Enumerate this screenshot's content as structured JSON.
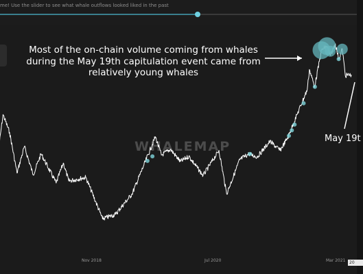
{
  "header": {
    "hint_text": "me! Use the slider to see what whale outflows looked liked in the past",
    "slider_value_fraction": 0.55
  },
  "watermark": "WHALEMAP",
  "annotation": {
    "lines": [
      "Most of the on-chain volume coming from whales",
      "during the May 19th capitulation event came from",
      "relatively young whales"
    ],
    "may_label": "May 19t"
  },
  "colors": {
    "background": "#1b1b1b",
    "price_line": "#ffffff",
    "bubble": "#7fd6dc",
    "bubble_large": "#66b7bd"
  },
  "chart_data": {
    "type": "line",
    "title": "",
    "xlabel": "",
    "ylabel": "",
    "x_tick_labels": [
      "Nov 2018",
      "Jul 2020",
      "Mar 2021",
      "20"
    ],
    "x_range": [
      "2017-12-01",
      "2021-06-30"
    ],
    "y_scale": "log",
    "y_range": [
      3000,
      65000
    ],
    "series": [
      {
        "values": [
          {
            "x": "2017-12-01",
            "y": 10500
          },
          {
            "x": "2017-12-17",
            "y": 19000
          },
          {
            "x": "2018-01-10",
            "y": 14000
          },
          {
            "x": "2018-02-06",
            "y": 7000
          },
          {
            "x": "2018-03-05",
            "y": 11000
          },
          {
            "x": "2018-04-06",
            "y": 6800
          },
          {
            "x": "2018-05-05",
            "y": 9700
          },
          {
            "x": "2018-06-29",
            "y": 5900
          },
          {
            "x": "2018-07-25",
            "y": 8300
          },
          {
            "x": "2018-08-14",
            "y": 6100
          },
          {
            "x": "2018-10-15",
            "y": 6500
          },
          {
            "x": "2018-11-20",
            "y": 4300
          },
          {
            "x": "2018-12-15",
            "y": 3200
          },
          {
            "x": "2019-01-31",
            "y": 3450
          },
          {
            "x": "2019-04-02",
            "y": 4900
          },
          {
            "x": "2019-05-15",
            "y": 8000
          },
          {
            "x": "2019-06-26",
            "y": 13000
          },
          {
            "x": "2019-07-18",
            "y": 9500
          },
          {
            "x": "2019-08-20",
            "y": 10500
          },
          {
            "x": "2019-09-25",
            "y": 8500
          },
          {
            "x": "2019-10-26",
            "y": 9300
          },
          {
            "x": "2019-12-17",
            "y": 6700
          },
          {
            "x": "2020-02-13",
            "y": 10300
          },
          {
            "x": "2020-03-12",
            "y": 4900
          },
          {
            "x": "2020-04-29",
            "y": 8800
          },
          {
            "x": "2020-06-01",
            "y": 9700
          },
          {
            "x": "2020-07-01",
            "y": 9200
          },
          {
            "x": "2020-08-17",
            "y": 12000
          },
          {
            "x": "2020-09-23",
            "y": 10300
          },
          {
            "x": "2020-10-21",
            "y": 12800
          },
          {
            "x": "2020-11-24",
            "y": 19000
          },
          {
            "x": "2020-12-31",
            "y": 29000
          },
          {
            "x": "2021-01-08",
            "y": 41000
          },
          {
            "x": "2021-01-27",
            "y": 30500
          },
          {
            "x": "2021-02-21",
            "y": 57000
          },
          {
            "x": "2021-03-13",
            "y": 61000
          },
          {
            "x": "2021-03-25",
            "y": 52000
          },
          {
            "x": "2021-04-13",
            "y": 63500
          },
          {
            "x": "2021-04-25",
            "y": 49000
          },
          {
            "x": "2021-05-08",
            "y": 58000
          },
          {
            "x": "2021-05-19",
            "y": 37000
          },
          {
            "x": "2021-06-10",
            "y": 37500
          }
        ]
      }
    ],
    "whale_bubbles": [
      {
        "x": "2019-05-28",
        "y": 8600,
        "size": "small"
      },
      {
        "x": "2019-06-15",
        "y": 9300,
        "size": "small"
      },
      {
        "x": "2020-06-05",
        "y": 9700,
        "size": "small"
      },
      {
        "x": "2020-10-25",
        "y": 13200,
        "size": "small"
      },
      {
        "x": "2020-11-05",
        "y": 14500,
        "size": "small"
      },
      {
        "x": "2020-11-15",
        "y": 16000,
        "size": "small"
      },
      {
        "x": "2020-12-18",
        "y": 23000,
        "size": "small"
      },
      {
        "x": "2021-01-28",
        "y": 30500,
        "size": "small"
      },
      {
        "x": "2021-02-21",
        "y": 57000,
        "size": "large"
      },
      {
        "x": "2021-03-13",
        "y": 61000,
        "size": "large"
      },
      {
        "x": "2021-03-25",
        "y": 56000,
        "size": "medium"
      },
      {
        "x": "2021-04-25",
        "y": 49000,
        "size": "small"
      },
      {
        "x": "2021-05-08",
        "y": 58000,
        "size": "medium"
      }
    ],
    "grid": false,
    "legend": "none"
  }
}
